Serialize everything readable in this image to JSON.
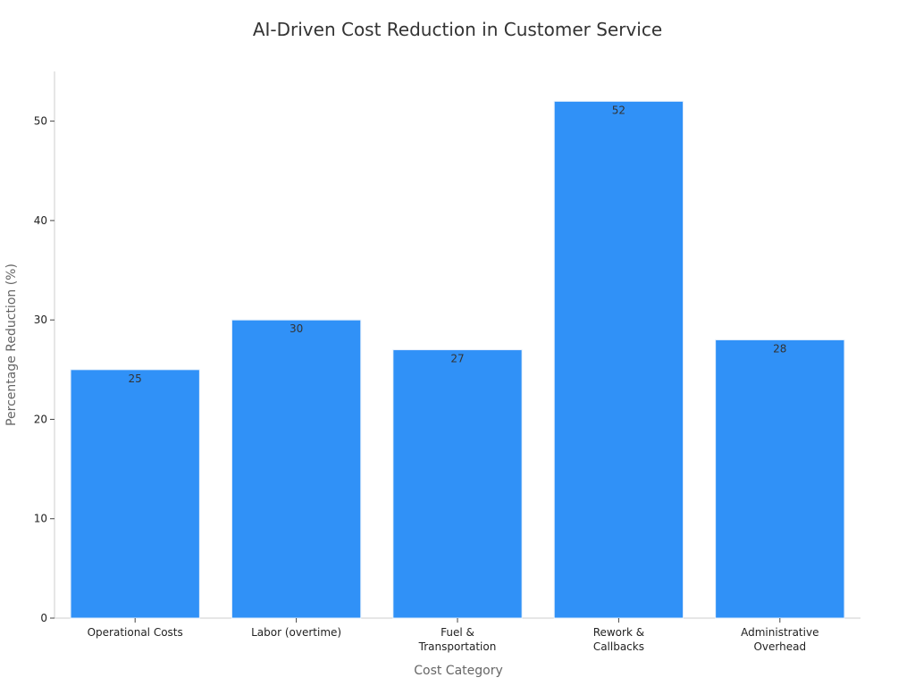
{
  "chart_data": {
    "type": "bar",
    "title": "AI-Driven Cost Reduction in Customer Service",
    "xlabel": "Cost Category",
    "ylabel": "Percentage Reduction (%)",
    "categories": [
      [
        "Operational Costs"
      ],
      [
        "Labor (overtime)"
      ],
      [
        "Fuel &",
        "Transportation"
      ],
      [
        "Rework &",
        "Callbacks"
      ],
      [
        "Administrative",
        "Overhead"
      ]
    ],
    "values": [
      25,
      30,
      27,
      52,
      28
    ],
    "value_labels": [
      "25",
      "30",
      "27",
      "52",
      "28"
    ],
    "ylim": [
      0,
      55
    ],
    "yticks": [
      0,
      10,
      20,
      30,
      40,
      50
    ],
    "ytick_labels": [
      "0",
      "10",
      "20",
      "30",
      "40",
      "50"
    ],
    "grid": false,
    "legend": "none",
    "bar_color": "#3091f7",
    "bar_edge_color": "#e6f0fb"
  }
}
